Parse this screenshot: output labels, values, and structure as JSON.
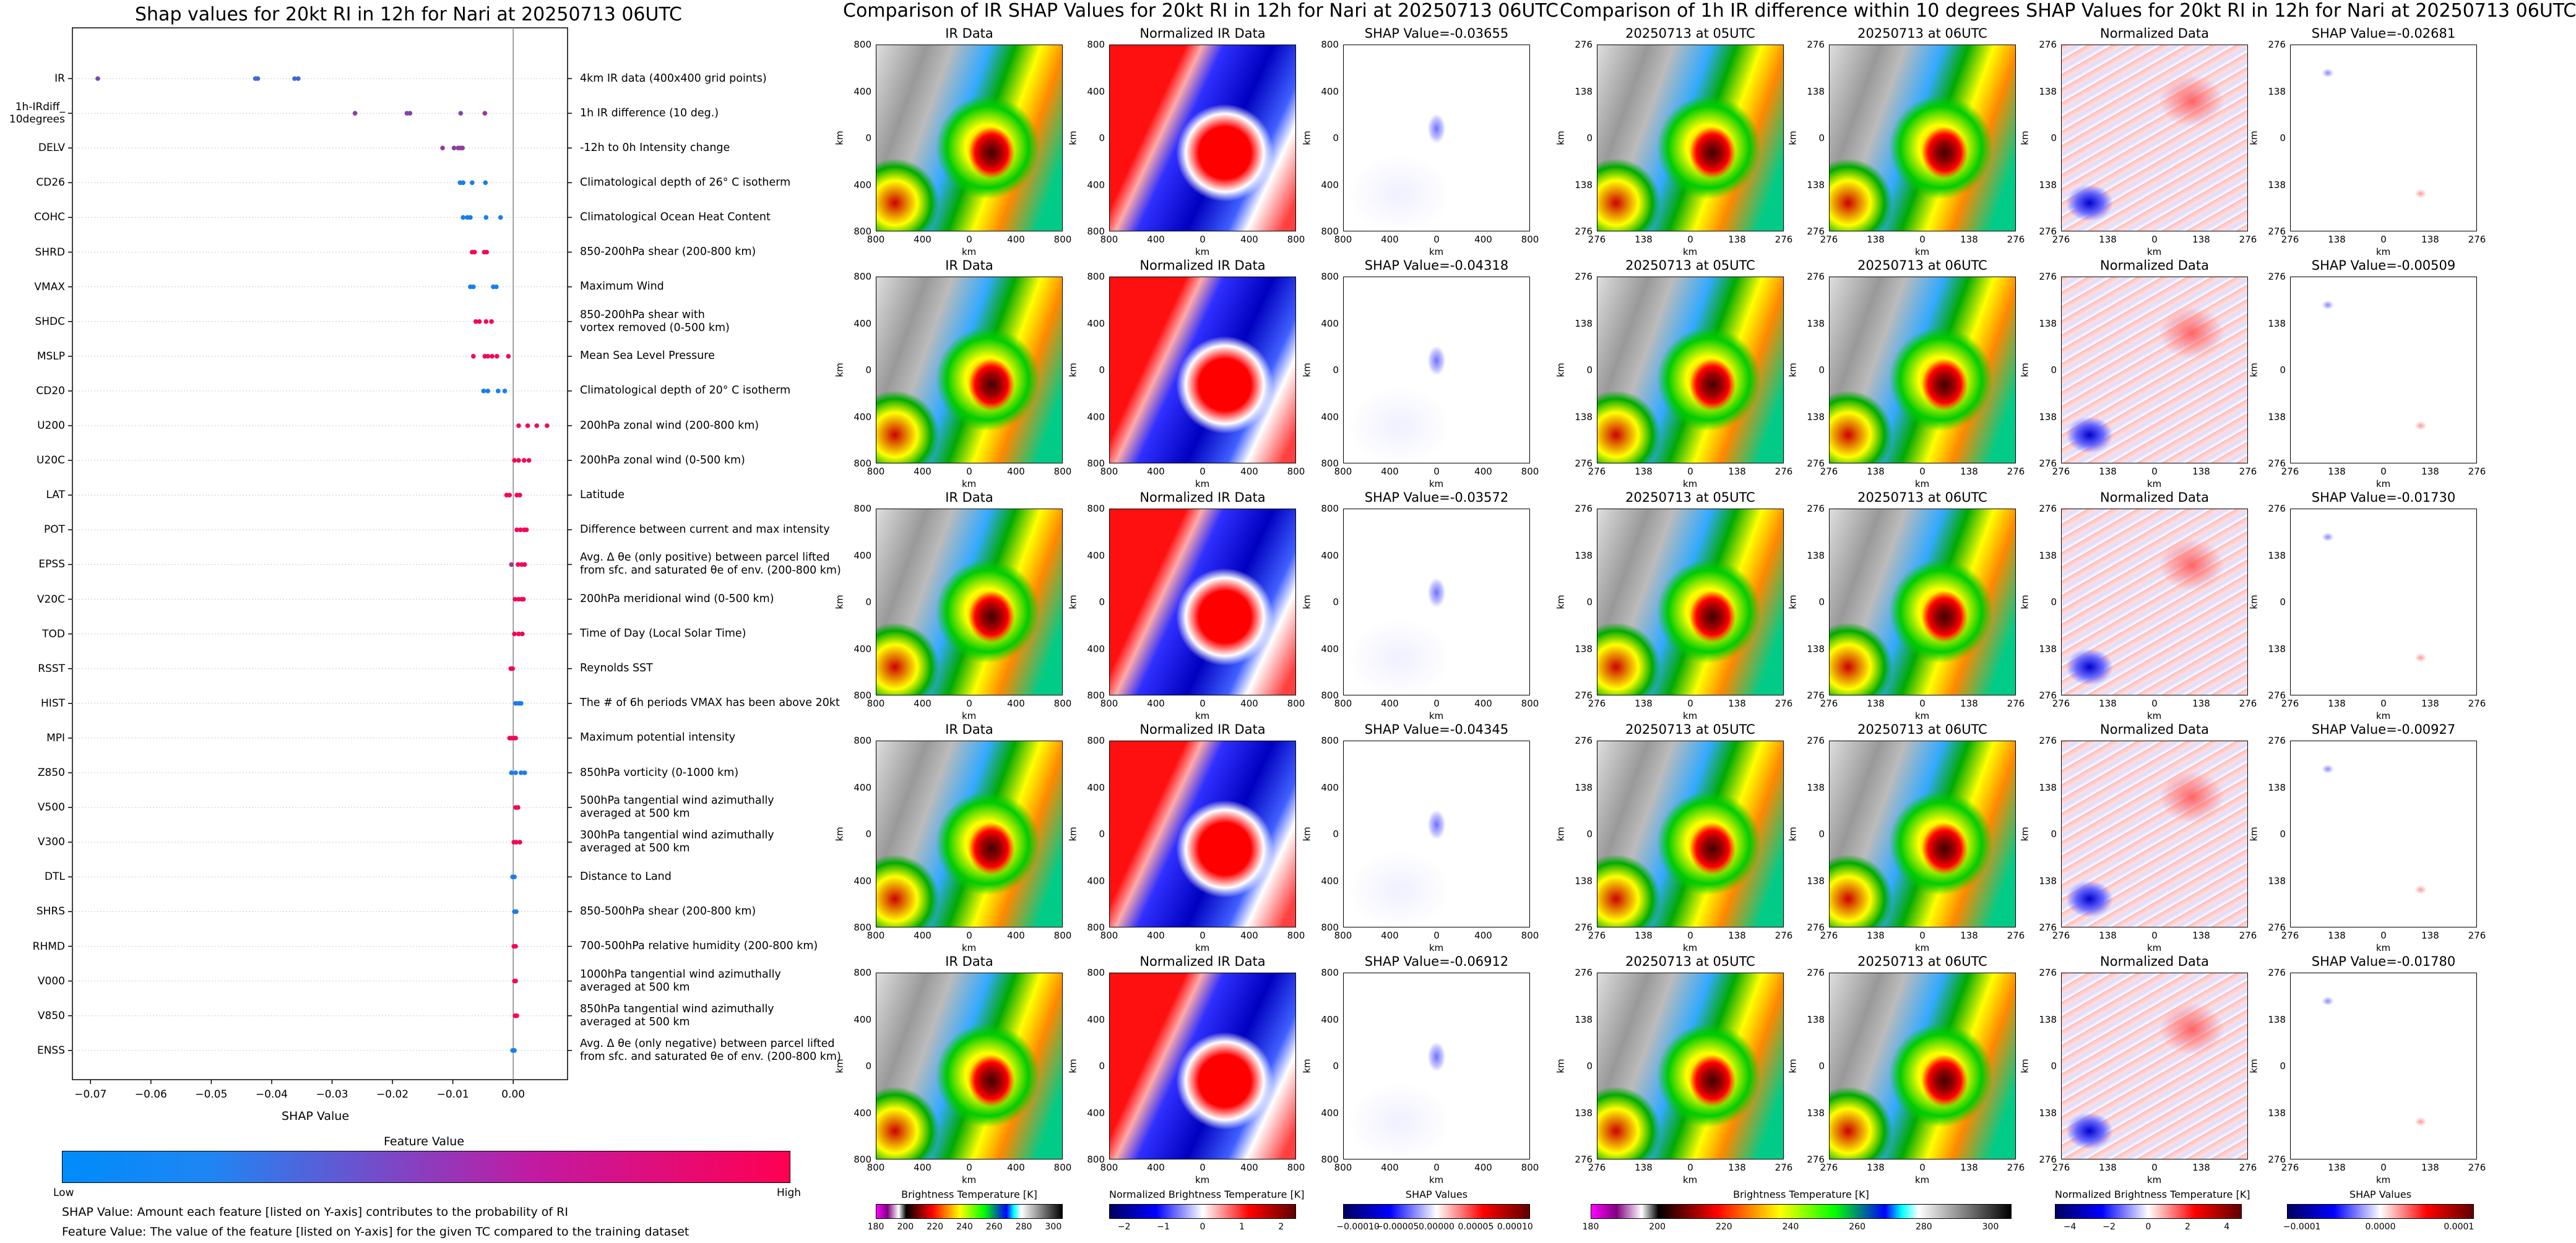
{
  "left_title": "Shap values for 20kt RI in 12h for Nari at 20250713 06UTC",
  "mid_title": "Comparison of IR SHAP Values for 20kt RI in 12h for Nari at 20250713 06UTC",
  "right_title": "Comparison of 1h IR difference within 10 degrees SHAP Values for 20kt RI in 12h for Nari at 20250713 06UTC",
  "chart_data": [
    {
      "type": "scatter",
      "title": "Shap values for 20kt RI in 12h for Nari at 20250713 06UTC",
      "xlabel": "SHAP Value",
      "xlim": [
        -0.073,
        0.009
      ],
      "xticks": [
        -0.07,
        -0.06,
        -0.05,
        -0.04,
        -0.03,
        -0.02,
        -0.01,
        0.0
      ],
      "xtick_labels": [
        "−0.07",
        "−0.06",
        "−0.05",
        "−0.04",
        "−0.03",
        "−0.02",
        "−0.01",
        "0.00"
      ],
      "colorbar": {
        "label": "Feature Value",
        "low_label": "Low",
        "high_label": "High",
        "colors": [
          "#008bfb",
          "#ff0052"
        ]
      },
      "features": [
        {
          "name": "IR",
          "desc": "4km IR data (400x400 grid points)",
          "points": [
            [
              -0.0688,
              0.45
            ],
            [
              -0.0427,
              0.2
            ],
            [
              -0.0423,
              0.25
            ],
            [
              -0.0362,
              0.25
            ],
            [
              -0.0356,
              0.25
            ]
          ]
        },
        {
          "name": "1h-IRdiff_\n10degrees",
          "desc": "1h IR difference (10 deg.)",
          "points": [
            [
              -0.0262,
              0.55
            ],
            [
              -0.0176,
              0.5
            ],
            [
              -0.0171,
              0.5
            ],
            [
              -0.0087,
              0.5
            ],
            [
              -0.0047,
              0.6
            ]
          ]
        },
        {
          "name": "DELV",
          "desc": "-12h to 0h Intensity change",
          "points": [
            [
              -0.0117,
              0.6
            ],
            [
              -0.0098,
              0.55
            ],
            [
              -0.0091,
              0.55
            ],
            [
              -0.0087,
              0.55
            ],
            [
              -0.0084,
              0.55
            ]
          ]
        },
        {
          "name": "CD26",
          "desc": "Climatological depth of 26° C isotherm",
          "points": [
            [
              -0.0088,
              0.08
            ],
            [
              -0.0083,
              0.08
            ],
            [
              -0.0068,
              0.08
            ],
            [
              -0.0046,
              0.08
            ]
          ]
        },
        {
          "name": "COHC",
          "desc": "Climatological Ocean Heat Content",
          "points": [
            [
              -0.0083,
              0.08
            ],
            [
              -0.0076,
              0.08
            ],
            [
              -0.0071,
              0.08
            ],
            [
              -0.0045,
              0.08
            ],
            [
              -0.0021,
              0.1
            ]
          ]
        },
        {
          "name": "SHRD",
          "desc": "850-200hPa shear (200-800 km)",
          "points": [
            [
              -0.0068,
              0.95
            ],
            [
              -0.0064,
              0.95
            ],
            [
              -0.0048,
              0.95
            ],
            [
              -0.0044,
              0.95
            ]
          ]
        },
        {
          "name": "VMAX",
          "desc": "Maximum Wind",
          "points": [
            [
              -0.0071,
              0.08
            ],
            [
              -0.0066,
              0.08
            ],
            [
              -0.0033,
              0.08
            ],
            [
              -0.0028,
              0.08
            ]
          ]
        },
        {
          "name": "SHDC",
          "desc": "850-200hPa shear with\nvortex removed (0-500 km)",
          "points": [
            [
              -0.0062,
              0.95
            ],
            [
              -0.0056,
              0.95
            ],
            [
              -0.0045,
              0.95
            ],
            [
              -0.0036,
              0.95
            ]
          ]
        },
        {
          "name": "MSLP",
          "desc": "Mean Sea Level Pressure",
          "points": [
            [
              -0.0066,
              0.95
            ],
            [
              -0.0047,
              0.95
            ],
            [
              -0.0042,
              0.95
            ],
            [
              -0.0035,
              0.95
            ],
            [
              -0.0027,
              0.95
            ],
            [
              -0.0008,
              0.95
            ]
          ]
        },
        {
          "name": "CD20",
          "desc": "Climatological depth of 20° C isotherm",
          "points": [
            [
              -0.0049,
              0.08
            ],
            [
              -0.0042,
              0.08
            ],
            [
              -0.0025,
              0.08
            ],
            [
              -0.0014,
              0.08
            ]
          ]
        },
        {
          "name": "U200",
          "desc": "200hPa zonal wind (200-800 km)",
          "points": [
            [
              0.0009,
              0.95
            ],
            [
              0.0024,
              0.95
            ],
            [
              0.0039,
              0.95
            ],
            [
              0.0056,
              0.95
            ]
          ]
        },
        {
          "name": "U20C",
          "desc": "200hPa zonal wind (0-500 km)",
          "points": [
            [
              0.0002,
              0.95
            ],
            [
              0.0009,
              0.95
            ],
            [
              0.0018,
              0.95
            ],
            [
              0.0026,
              0.95
            ]
          ]
        },
        {
          "name": "LAT",
          "desc": "Latitude",
          "points": [
            [
              -0.0011,
              0.95
            ],
            [
              -0.0006,
              0.95
            ],
            [
              0.0006,
              0.95
            ],
            [
              0.0011,
              0.95
            ]
          ]
        },
        {
          "name": "POT",
          "desc": "Difference between current and max intensity",
          "points": [
            [
              0.0006,
              0.95
            ],
            [
              0.0012,
              0.95
            ],
            [
              0.0018,
              0.95
            ],
            [
              0.0022,
              0.95
            ]
          ]
        },
        {
          "name": "EPSS",
          "desc": "Avg. Δ θe (only positive) between parcel lifted\nfrom sfc. and saturated θe of env. (200-800 km)",
          "points": [
            [
              -0.0003,
              0.6
            ],
            [
              0.0008,
              0.95
            ],
            [
              0.0014,
              0.95
            ],
            [
              0.0019,
              0.95
            ]
          ]
        },
        {
          "name": "V20C",
          "desc": "200hPa meridional wind (0-500 km)",
          "points": [
            [
              0.0003,
              0.95
            ],
            [
              0.0009,
              0.95
            ],
            [
              0.0014,
              0.95
            ],
            [
              0.0017,
              0.95
            ]
          ]
        },
        {
          "name": "TOD",
          "desc": "Time of Day (Local Solar Time)",
          "points": [
            [
              0.0002,
              0.95
            ],
            [
              0.0009,
              0.95
            ],
            [
              0.0015,
              0.95
            ]
          ]
        },
        {
          "name": "RSST",
          "desc": "Reynolds SST",
          "points": [
            [
              -0.0004,
              0.95
            ],
            [
              -0.0001,
              0.95
            ]
          ]
        },
        {
          "name": "HIST",
          "desc": "The # of 6h periods VMAX has been above 20kt",
          "points": [
            [
              0.0004,
              0.1
            ],
            [
              0.0009,
              0.1
            ],
            [
              0.0013,
              0.1
            ]
          ]
        },
        {
          "name": "MPI",
          "desc": "Maximum potential intensity",
          "points": [
            [
              -0.0006,
              0.95
            ],
            [
              -0.0003,
              0.95
            ],
            [
              0.0001,
              0.95
            ],
            [
              0.0004,
              0.95
            ]
          ]
        },
        {
          "name": "Z850",
          "desc": "850hPa vorticity (0-1000 km)",
          "points": [
            [
              -0.0003,
              0.1
            ],
            [
              0.0004,
              0.1
            ],
            [
              0.0013,
              0.1
            ],
            [
              0.0019,
              0.1
            ]
          ]
        },
        {
          "name": "V500",
          "desc": "500hPa tangential wind azimuthally\naveraged at 500 km",
          "points": [
            [
              0.0004,
              0.95
            ],
            [
              0.0008,
              0.95
            ]
          ]
        },
        {
          "name": "V300",
          "desc": "300hPa tangential wind azimuthally\naveraged at 500 km",
          "points": [
            [
              0.0001,
              0.95
            ],
            [
              0.0005,
              0.95
            ],
            [
              0.0011,
              0.95
            ]
          ]
        },
        {
          "name": "DTL",
          "desc": "Distance to Land",
          "points": [
            [
              -0.0001,
              0.1
            ],
            [
              0.0002,
              0.1
            ]
          ]
        },
        {
          "name": "SHRS",
          "desc": "850-500hPa shear (200-800 km)",
          "points": [
            [
              0.0002,
              0.1
            ],
            [
              0.0005,
              0.1
            ]
          ]
        },
        {
          "name": "RHMD",
          "desc": "700-500hPa relative humidity (200-800 km)",
          "points": [
            [
              0.0001,
              0.95
            ],
            [
              0.0004,
              0.95
            ]
          ]
        },
        {
          "name": "V000",
          "desc": "1000hPa tangential wind azimuthally\naveraged at 500 km",
          "points": [
            [
              0.0002,
              0.95
            ],
            [
              0.0004,
              0.95
            ]
          ]
        },
        {
          "name": "V850",
          "desc": "850hPa tangential wind azimuthally\naveraged at 500 km",
          "points": [
            [
              0.0003,
              0.95
            ],
            [
              0.0006,
              0.95
            ]
          ]
        },
        {
          "name": "ENSS",
          "desc": "Avg. Δ θe (only negative) between parcel lifted\nfrom sfc. and saturated θe of env. (200-800 km)",
          "points": [
            [
              -0.0001,
              0.1
            ],
            [
              0.0002,
              0.1
            ]
          ]
        }
      ]
    }
  ],
  "notes": [
    "SHAP Value: Amount each feature [listed on Y-axis] contributes to the probability of RI",
    "Feature Value: The value of the feature [listed on Y-axis] for the given TC compared to the training dataset"
  ],
  "ir_grid": {
    "col_titles": [
      "IR Data",
      "Normalized IR Data"
    ],
    "shap_titles": [
      "SHAP Value=-0.03655",
      "SHAP Value=-0.04318",
      "SHAP Value=-0.03572",
      "SHAP Value=-0.04345",
      "SHAP Value=-0.06912"
    ],
    "yticks": [
      "800",
      "400",
      "0",
      "400",
      "800"
    ],
    "xticks": [
      "800",
      "400",
      "0",
      "400",
      "800"
    ],
    "axis_label": "km"
  },
  "diff_grid": {
    "col_titles": [
      "20250713 at 05UTC",
      "20250713 at 06UTC",
      "Normalized Data"
    ],
    "shap_titles": [
      "SHAP Value=-0.02681",
      "SHAP Value=-0.00509",
      "SHAP Value=-0.01730",
      "SHAP Value=-0.00927",
      "SHAP Value=-0.01780"
    ],
    "yticks": [
      "276",
      "138",
      "0",
      "138",
      "276"
    ],
    "xticks": [
      "276",
      "138",
      "0",
      "138",
      "276"
    ],
    "axis_label": "km"
  },
  "colorbars": [
    {
      "label": "Brightness Temperature [K]",
      "ticks": [
        "180",
        "200",
        "220",
        "240",
        "260",
        "280",
        "300"
      ]
    },
    {
      "label": "Normalized Brightness Temperature [K]",
      "ticks": [
        "−2",
        "−1",
        "0",
        "1",
        "2"
      ]
    },
    {
      "label": "SHAP Values",
      "ticks": [
        "−0.00010",
        "−0.00005",
        "0.00000",
        "0.00005",
        "0.00010"
      ]
    },
    {
      "label": "Brightness Temperature [K]",
      "ticks": [
        "180",
        "200",
        "220",
        "240",
        "260",
        "280",
        "300"
      ]
    },
    {
      "label": "Normalized Brightness Temperature [K]",
      "ticks": [
        "−4",
        "−2",
        "0",
        "2",
        "4"
      ]
    },
    {
      "label": "SHAP Values",
      "ticks": [
        "−0.0001",
        "0.0000",
        "0.0001"
      ]
    }
  ],
  "colors": {
    "low": "#008bfb",
    "high": "#ff0052"
  }
}
